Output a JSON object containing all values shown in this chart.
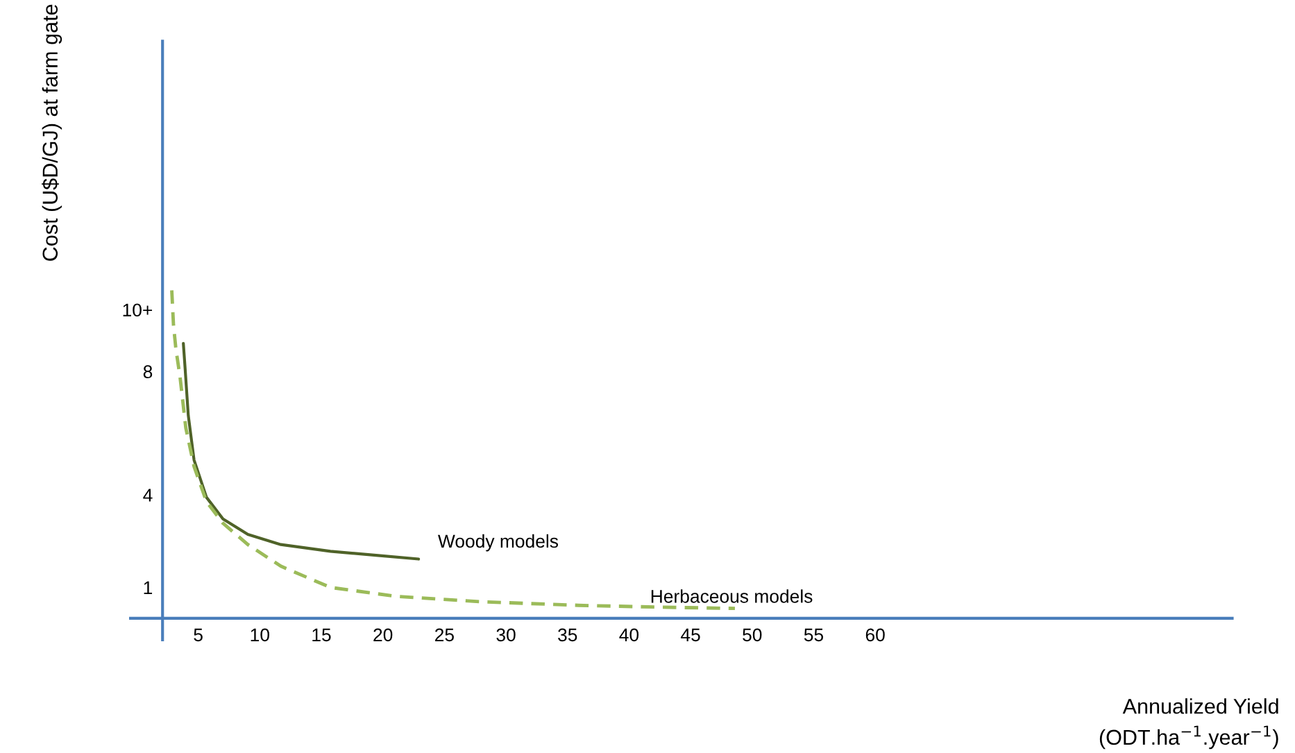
{
  "chart_data": {
    "type": "line",
    "xlabel": "Annualized Yield\n(ODT.ha$^{−1}$.year$^{−1}$)",
    "ylabel": "Cost (U$D/GJ) at farm gate",
    "xlim": [
      -0.5,
      89.0
    ],
    "ylim": [
      -0.7,
      18.7
    ],
    "xticks": [
      5,
      10,
      15,
      20,
      25,
      30,
      35,
      40,
      45,
      50,
      55,
      60
    ],
    "yticks": [
      1,
      4,
      8,
      {
        "value": 10,
        "label": "10+"
      }
    ],
    "grid": false,
    "legend": false,
    "marker": "none",
    "series": [
      {
        "name": "Woody models",
        "color": "#4f6228",
        "line_style": "solid",
        "x": [
          3.79,
          3.93,
          4.19,
          4.66,
          5.67,
          7.01,
          9.03,
          11.71,
          15.74,
          19.77,
          22.9
        ],
        "values": [
          8.91,
          8.12,
          6.58,
          5.13,
          3.92,
          3.22,
          2.72,
          2.39,
          2.17,
          2.03,
          1.92
        ]
      },
      {
        "name": "Herbaceous models",
        "color": "#9bbb59",
        "line_style": "dashed",
        "x": [
          2.85,
          2.99,
          3.19,
          3.52,
          3.99,
          4.66,
          5.67,
          7.01,
          9.03,
          11.71,
          15.74,
          21.1,
          27.8,
          35.9,
          42.6,
          48.6
        ],
        "values": [
          10.63,
          9.5,
          8.71,
          7.83,
          6.17,
          4.92,
          3.78,
          3.08,
          2.39,
          1.69,
          1.0,
          0.71,
          0.54,
          0.42,
          0.36,
          0.32
        ]
      }
    ]
  }
}
